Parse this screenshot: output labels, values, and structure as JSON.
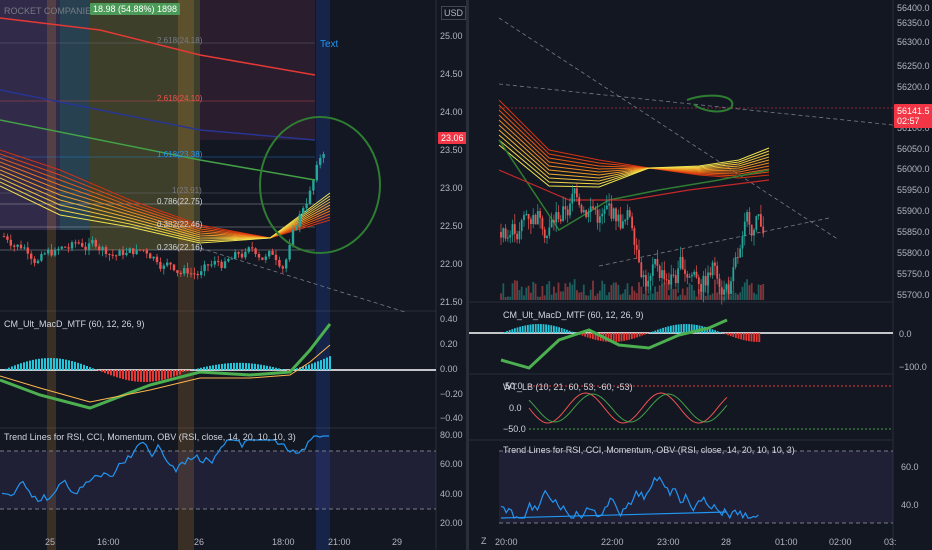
{
  "left": {
    "symbol": "ROCKET COMPANIES IN",
    "measure_badge": "18.98 (54.88%) 1898",
    "currency": "USD",
    "price_tag": "23.06",
    "text_label": "Text",
    "fib_labels": [
      "2.618(24.18)",
      "2.618(24.10)",
      "1.618(23.38)",
      "1(23.91)",
      "0.786(22.75)",
      "0.382(22.46)",
      "0.236(22.16)"
    ],
    "price_axis": [
      "25.00",
      "24.50",
      "24.00",
      "23.50",
      "23.00",
      "22.50",
      "22.00",
      "21.50"
    ],
    "macd_title": "CM_Ult_MacD_MTF (60, 12, 26, 9)",
    "macd_axis": [
      "0.40",
      "0.20",
      "0.00",
      "−0.20",
      "−0.40"
    ],
    "trend_title": "Trend Lines for RSI, CCI, Momentum, OBV (RSI, close, 14, 20, 10, 10, 3)",
    "trend_axis": [
      "80.00",
      "60.00",
      "40.00",
      "20.00"
    ],
    "time_axis": [
      "25",
      "16:00",
      "26",
      "18:00",
      "21:00",
      "29"
    ]
  },
  "right": {
    "price_tag": "56141.5",
    "price_tag_sub": "02:57",
    "price_axis": [
      "56400.0",
      "56350.0",
      "56300.0",
      "56250.0",
      "56200.0",
      "56150.0",
      "56100.0",
      "56050.0",
      "56000.0",
      "55950.0",
      "55900.0",
      "55850.0",
      "55800.0",
      "55750.0",
      "55700.0"
    ],
    "macd_title": "CM_Ult_MacD_MTF (60, 12, 26, 9)",
    "macd_axis": [
      "0.0",
      "−100.0"
    ],
    "wt_title": "WT_LB (10, 21, 60, 53, -60, -53)",
    "wt_axis": [
      "50.0",
      "0.0",
      "−50.0"
    ],
    "trend_title": "Trend Lines for RSI, CCI, Momentum, OBV (RSI, close, 14, 20, 10, 10, 3)",
    "trend_axis": [
      "60.0",
      "40.0"
    ],
    "time_axis": [
      "Z",
      "22:00",
      "23:00",
      "28",
      "01:00",
      "02:00",
      "03:"
    ],
    "time_axis_first": "20:00"
  },
  "colors": {
    "bg": "#131722",
    "up": "#26a69a",
    "down": "#ef5350",
    "red_tag": "#f23645",
    "macd_green": "#4caf50",
    "rsi_blue": "#2196f3",
    "rsi_band": "#7e57c2"
  }
}
